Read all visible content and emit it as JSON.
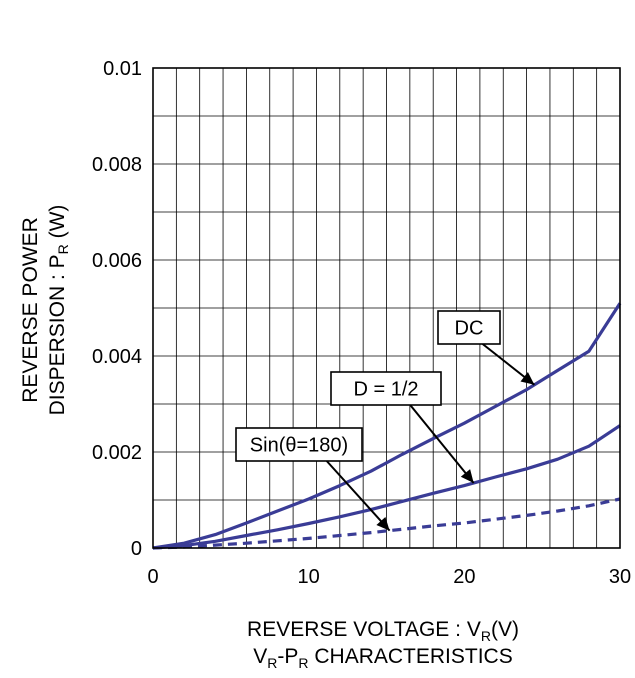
{
  "chart_data": {
    "type": "line",
    "title": "",
    "xlabel": {
      "main": "REVERSE VOLTAGE : V",
      "sub": "R",
      "suffix": "(V)"
    },
    "ylabel": {
      "line1": "REVERSE POWER",
      "line2_main": "DISPERSION : P",
      "line2_sub": "R",
      "line2_suffix": " (W)"
    },
    "caption": {
      "v": "V",
      "r1": "R",
      "dash": "-P",
      "r2": "R",
      "rest": " CHARACTERISTICS"
    },
    "xlim": [
      0,
      30
    ],
    "ylim": [
      0,
      0.01
    ],
    "x_ticks": [
      "0",
      "10",
      "20",
      "30"
    ],
    "y_ticks": [
      "0",
      "0.002",
      "0.004",
      "0.006",
      "0.008",
      "0.01"
    ],
    "grid": true,
    "series": [
      {
        "name": "DC",
        "style": "solid",
        "x": [
          0,
          2,
          4,
          6,
          8,
          10,
          12,
          14,
          16,
          18,
          20,
          22,
          24,
          26,
          28,
          30
        ],
        "y": [
          0,
          0.0001,
          0.00028,
          0.00052,
          0.00077,
          0.00102,
          0.0013,
          0.0016,
          0.00195,
          0.00228,
          0.0026,
          0.00295,
          0.0033,
          0.0037,
          0.0041,
          0.0051
        ]
      },
      {
        "name": "D = 1/2",
        "style": "solid",
        "x": [
          0,
          2,
          4,
          6,
          8,
          10,
          12,
          14,
          16,
          18,
          20,
          22,
          24,
          26,
          28,
          30
        ],
        "y": [
          0,
          5e-05,
          0.00014,
          0.00026,
          0.00038,
          0.00051,
          0.00065,
          0.0008,
          0.00097,
          0.00114,
          0.0013,
          0.00148,
          0.00165,
          0.00185,
          0.00212,
          0.00255
        ]
      },
      {
        "name": "Sin(θ=180)",
        "style": "dashed",
        "x": [
          0,
          2,
          4,
          6,
          8,
          10,
          12,
          14,
          16,
          18,
          20,
          22,
          24,
          26,
          28,
          30
        ],
        "y": [
          0,
          2e-05,
          6e-05,
          0.0001,
          0.00015,
          0.0002,
          0.00026,
          0.00032,
          0.00039,
          0.00046,
          0.00052,
          0.0006,
          0.00068,
          0.00077,
          0.00088,
          0.00102
        ]
      }
    ],
    "annotations": [
      {
        "label": "DC",
        "series": 0,
        "target_x": 24.5
      },
      {
        "label": "D = 1/2",
        "series": 1,
        "target_x": 20.6
      },
      {
        "label": "Sin(θ=180)",
        "series": 2,
        "target_x": 15.2
      }
    ],
    "line_color": "#3a3c96"
  }
}
